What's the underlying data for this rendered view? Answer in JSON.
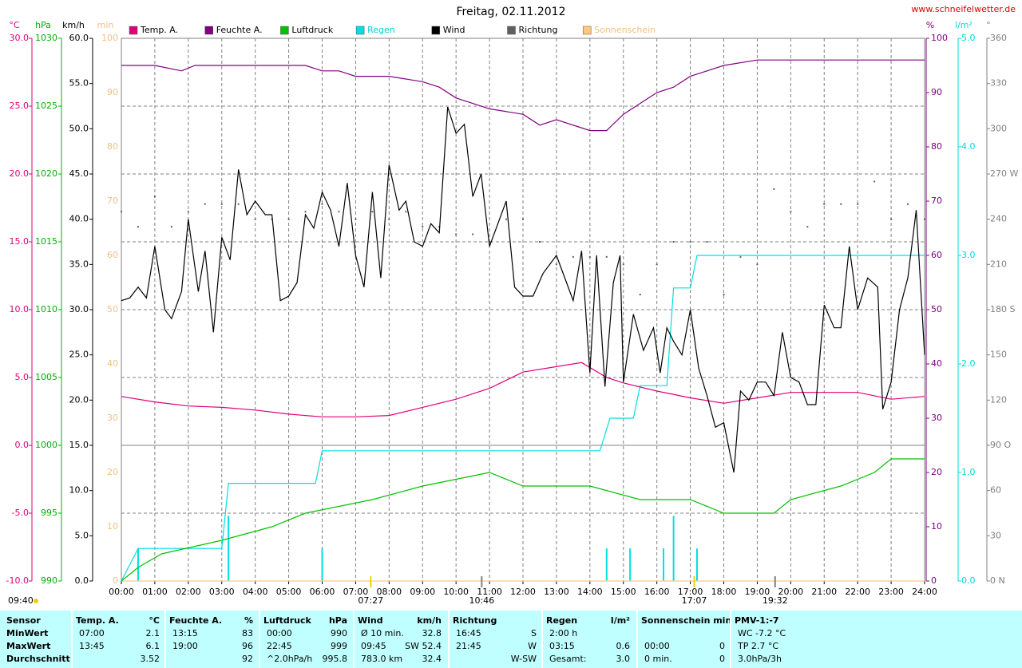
{
  "chart_data": {
    "type": "line",
    "title": "Freitag, 02.11.2012",
    "site": "www.schneifelwetter.de",
    "xlim": [
      0,
      24
    ],
    "xticks": [
      {
        "value": 0,
        "label": "00:00"
      },
      {
        "value": 1,
        "label": "01:00"
      },
      {
        "value": 2,
        "label": "02:00"
      },
      {
        "value": 3,
        "label": "03:00"
      },
      {
        "value": 4,
        "label": "04:00"
      },
      {
        "value": 5,
        "label": "05:00"
      },
      {
        "value": 6,
        "label": "06:00"
      },
      {
        "value": 7,
        "label": "07:00"
      },
      {
        "value": 8,
        "label": "08:00"
      },
      {
        "value": 9,
        "label": "09:00"
      },
      {
        "value": 10,
        "label": "10:00"
      },
      {
        "value": 11,
        "label": "11:00"
      },
      {
        "value": 12,
        "label": "12:00"
      },
      {
        "value": 13,
        "label": "13:00"
      },
      {
        "value": 14,
        "label": "14:00"
      },
      {
        "value": 15,
        "label": "15:00"
      },
      {
        "value": 16,
        "label": "16:00"
      },
      {
        "value": 17,
        "label": "17:00"
      },
      {
        "value": 18,
        "label": "18:00"
      },
      {
        "value": 19,
        "label": "19:00"
      },
      {
        "value": 20,
        "label": "20:00"
      },
      {
        "value": 21,
        "label": "21:00"
      },
      {
        "value": 22,
        "label": "22:00"
      },
      {
        "value": 23,
        "label": "23:00"
      },
      {
        "value": 24,
        "label": "24:00"
      }
    ],
    "grid": true,
    "grid_axis": "temp",
    "axes": {
      "temp": {
        "unit": "°C",
        "color": "#e0007a",
        "lim": [
          -10,
          30
        ],
        "ticks": [
          {
            "value": -10,
            "label": "-10.0"
          },
          {
            "value": -5,
            "label": "-5.0"
          },
          {
            "value": 0,
            "label": "0.0"
          },
          {
            "value": 5,
            "label": "5.0"
          },
          {
            "value": 10,
            "label": "10.0"
          },
          {
            "value": 15,
            "label": "15.0"
          },
          {
            "value": 20,
            "label": "20.0"
          },
          {
            "value": 25,
            "label": "25.0"
          },
          {
            "value": 30,
            "label": "30.0"
          }
        ]
      },
      "hpa": {
        "unit": "hPa",
        "color": "#00b000",
        "lim": [
          990,
          1030
        ],
        "ticks": [
          990,
          995,
          1000,
          1005,
          1010,
          1015,
          1020,
          1025,
          1030
        ]
      },
      "kmh": {
        "unit": "km/h",
        "color": "#000000",
        "lim": [
          0,
          60
        ],
        "ticks": [
          {
            "value": 0,
            "label": "0.0"
          },
          {
            "value": 5,
            "label": "5.0"
          },
          {
            "value": 10,
            "label": "10.0"
          },
          {
            "value": 15,
            "label": "15.0"
          },
          {
            "value": 20,
            "label": "20.0"
          },
          {
            "value": 25,
            "label": "25.0"
          },
          {
            "value": 30,
            "label": "30.0"
          },
          {
            "value": 35,
            "label": "35.0"
          },
          {
            "value": 40,
            "label": "40.0"
          },
          {
            "value": 45,
            "label": "45.0"
          },
          {
            "value": 50,
            "label": "50.0"
          },
          {
            "value": 55,
            "label": "55.0"
          },
          {
            "value": 60,
            "label": "60.0"
          }
        ]
      },
      "min": {
        "unit": "min",
        "color": "#f0c080",
        "lim": [
          0,
          100
        ],
        "ticks": [
          0,
          10,
          20,
          30,
          40,
          50,
          60,
          70,
          80,
          90,
          100
        ]
      },
      "pct": {
        "unit": "%",
        "color": "#800080",
        "lim": [
          0,
          100
        ],
        "ticks": [
          0,
          10,
          20,
          30,
          40,
          50,
          60,
          70,
          80,
          90,
          100
        ]
      },
      "rain": {
        "unit": "l/m²",
        "color": "#00d8d8",
        "lim": [
          0,
          5
        ],
        "ticks": [
          {
            "value": 0,
            "label": "0.0"
          },
          {
            "value": 1,
            "label": "1.0"
          },
          {
            "value": 2,
            "label": "2.0"
          },
          {
            "value": 3,
            "label": "3.0"
          },
          {
            "value": 4,
            "label": "4.0"
          },
          {
            "value": 5,
            "label": "5.0"
          }
        ]
      },
      "dir": {
        "unit": "°",
        "color": "#808080",
        "lim": [
          0,
          360
        ],
        "ticks": [
          {
            "value": 0,
            "label": "0 N"
          },
          {
            "value": 30,
            "label": "30"
          },
          {
            "value": 60,
            "label": "60"
          },
          {
            "value": 90,
            "label": "90 O"
          },
          {
            "value": 120,
            "label": "120"
          },
          {
            "value": 150,
            "label": "150"
          },
          {
            "value": 180,
            "label": "180 S"
          },
          {
            "value": 210,
            "label": "210"
          },
          {
            "value": 240,
            "label": "240"
          },
          {
            "value": 270,
            "label": "270 W"
          },
          {
            "value": 300,
            "label": "300"
          },
          {
            "value": 330,
            "label": "330"
          },
          {
            "value": 360,
            "label": "360"
          }
        ]
      }
    },
    "series": [
      {
        "name": "Temp. A.",
        "color": "#e0007a",
        "axis": "temp",
        "style": "line",
        "x": [
          0,
          1,
          2,
          3,
          4,
          5,
          6,
          7,
          8,
          9,
          10,
          11,
          12,
          13,
          13.75,
          14.5,
          15,
          16,
          17,
          18,
          19,
          20,
          21,
          22,
          23,
          24
        ],
        "values": [
          3.6,
          3.2,
          2.9,
          2.8,
          2.6,
          2.3,
          2.1,
          2.1,
          2.2,
          2.8,
          3.4,
          4.2,
          5.4,
          5.8,
          6.1,
          5.0,
          4.6,
          4.0,
          3.5,
          3.1,
          3.5,
          3.9,
          3.9,
          3.9,
          3.4,
          3.6
        ]
      },
      {
        "name": "Feuchte A.",
        "color": "#800080",
        "axis": "pct",
        "style": "line",
        "x": [
          0,
          1,
          1.8,
          2.2,
          3,
          5.5,
          6,
          6.5,
          7,
          8,
          9,
          9.5,
          10,
          10.5,
          11,
          12,
          12.5,
          13,
          14,
          14.5,
          15,
          15.5,
          16,
          16.5,
          17,
          18,
          19,
          24
        ],
        "values": [
          95,
          95,
          94,
          95,
          95,
          95,
          94,
          94,
          93,
          93,
          92,
          91,
          89,
          88,
          87,
          86,
          84,
          85,
          83,
          83,
          86,
          88,
          90,
          91,
          93,
          95,
          96,
          96
        ]
      },
      {
        "name": "Luftdruck",
        "color": "#00c000",
        "axis": "hpa",
        "style": "line",
        "x": [
          0,
          0.5,
          1.2,
          3,
          4.5,
          5.5,
          7.5,
          9,
          11,
          12,
          14,
          15.5,
          17,
          18,
          19.5,
          20,
          21.5,
          22.5,
          23,
          24
        ],
        "values": [
          990,
          991,
          992,
          993,
          994,
          995,
          996,
          997,
          998,
          997,
          997,
          996,
          996,
          995,
          995,
          996,
          997,
          998,
          999,
          999
        ]
      },
      {
        "name": "Regen",
        "color": "#00e0e0",
        "axis": "rain",
        "style": "line",
        "x": [
          0,
          0.5,
          3,
          3.2,
          5.8,
          6,
          14.3,
          14.6,
          15.3,
          15.5,
          16.3,
          16.5,
          17,
          17.2,
          24
        ],
        "values": [
          0,
          0.3,
          0.3,
          0.9,
          0.9,
          1.2,
          1.2,
          1.5,
          1.5,
          1.8,
          1.8,
          2.7,
          2.7,
          3.0,
          3.0
        ]
      },
      {
        "name": "Wind",
        "color": "#000000",
        "axis": "kmh",
        "style": "line",
        "x": [
          0,
          0.25,
          0.5,
          0.75,
          1,
          1.3,
          1.5,
          1.8,
          2,
          2.3,
          2.5,
          2.75,
          3,
          3.25,
          3.5,
          3.75,
          4,
          4.3,
          4.5,
          4.75,
          5,
          5.25,
          5.5,
          5.75,
          6,
          6.25,
          6.5,
          6.75,
          7,
          7.25,
          7.5,
          7.75,
          8,
          8.3,
          8.5,
          8.75,
          9,
          9.25,
          9.5,
          9.75,
          10,
          10.25,
          10.5,
          10.75,
          11,
          11.5,
          11.75,
          12,
          12.3,
          12.6,
          13,
          13.3,
          13.5,
          13.75,
          14,
          14.2,
          14.45,
          14.7,
          14.9,
          15,
          15.3,
          15.6,
          15.9,
          16.1,
          16.3,
          16.5,
          16.75,
          17,
          17.25,
          17.5,
          17.75,
          18,
          18.3,
          18.5,
          18.75,
          19,
          19.25,
          19.5,
          19.75,
          20,
          20.25,
          20.5,
          20.75,
          21,
          21.3,
          21.5,
          21.75,
          22,
          22.3,
          22.6,
          22.75,
          23,
          23.25,
          23.5,
          23.75,
          24
        ],
        "values": [
          31,
          31.3,
          32.5,
          31.3,
          37,
          30,
          29,
          32,
          40,
          32,
          36.5,
          27.5,
          38,
          35.5,
          45.5,
          40.5,
          42,
          40.5,
          40.5,
          31,
          31.5,
          33,
          40.5,
          39,
          43,
          41,
          37,
          44,
          36,
          32.5,
          43,
          33.5,
          46,
          41,
          42,
          37.5,
          37,
          39.5,
          38.5,
          52.4,
          49.5,
          50.5,
          42.5,
          45,
          37,
          42,
          32.5,
          31.5,
          31.5,
          34,
          36,
          33,
          31,
          36.5,
          23,
          36,
          21.5,
          33,
          36,
          22,
          29.5,
          25.5,
          28,
          23,
          28,
          26.5,
          25,
          30,
          23.5,
          20.5,
          17,
          17.5,
          12,
          21,
          20,
          22,
          22,
          20.5,
          27.5,
          22.5,
          22,
          19.5,
          19.5,
          30.5,
          28,
          28,
          37,
          30,
          33.5,
          32.5,
          19,
          22,
          30,
          33.5,
          41,
          25
        ]
      },
      {
        "name": "Richtung",
        "color": "#606060",
        "axis": "dir",
        "style": "dots",
        "x": [
          0,
          0.5,
          1,
          1.5,
          2,
          2.5,
          3,
          3.5,
          4,
          4.5,
          5,
          5.5,
          6,
          6.5,
          7,
          7.5,
          8,
          8.5,
          9,
          9.5,
          10,
          10.5,
          11,
          11.5,
          12,
          12.5,
          13,
          13.5,
          14,
          14.5,
          15,
          15.5,
          16,
          16.5,
          17,
          17.5,
          18,
          18.5,
          19,
          19.5,
          20,
          20.5,
          21,
          21.5,
          22,
          22.5,
          23,
          23.5,
          24
        ],
        "values": [
          245,
          235,
          255,
          235,
          245,
          250,
          250,
          250,
          240,
          240,
          240,
          245,
          250,
          245,
          240,
          245,
          240,
          245,
          235,
          235,
          230,
          230,
          225,
          240,
          240,
          225,
          210,
          215,
          215,
          215,
          210,
          190,
          210,
          225,
          225,
          225,
          190,
          215,
          210,
          260,
          245,
          235,
          250,
          250,
          250,
          265,
          240,
          250,
          240
        ]
      },
      {
        "name": "Sonnenschein",
        "color": "#ffc880",
        "axis": "min",
        "style": "line",
        "x": [
          0,
          24
        ],
        "values": [
          0,
          0
        ]
      }
    ],
    "rain_10min": {
      "color": "#00e0e0",
      "axis": "rain",
      "x": [
        0.5,
        3.2,
        6,
        14.5,
        15.2,
        16.2,
        16.5,
        17.2
      ],
      "values": [
        0.3,
        0.6,
        0.3,
        0.3,
        0.3,
        0.3,
        0.6,
        0.3
      ]
    },
    "day_length": "09:40",
    "annotations": [
      {
        "value": 7.45,
        "label": "07:27",
        "color": "#f0d000"
      },
      {
        "value": 10.767,
        "label": "10:46",
        "color": "#808080"
      },
      {
        "value": 17.117,
        "label": "17:07",
        "color": "#f0d000"
      },
      {
        "value": 19.533,
        "label": "19:32",
        "color": "#808080"
      }
    ]
  },
  "table": {
    "header": "Sensor",
    "row_labels": [
      "MinWert",
      "MaxWert",
      "Durchschnitt"
    ],
    "columns": [
      {
        "title": "Temp. A.",
        "unit": "°C",
        "cells": [
          {
            "left": "07:00",
            "right": "2.1"
          },
          {
            "left": "13:45",
            "right": "6.1"
          },
          {
            "right": "3.52"
          }
        ]
      },
      {
        "title": "Feuchte A.",
        "unit": "%",
        "cells": [
          {
            "left": "13:15",
            "right": "83"
          },
          {
            "left": "19:00",
            "right": "96"
          },
          {
            "right": "92"
          }
        ]
      },
      {
        "title": "Luftdruck",
        "unit": "hPa",
        "cells": [
          {
            "left": "00:00",
            "right": "990"
          },
          {
            "left": "22:45",
            "right": "999"
          },
          {
            "left": "^2.0hPa/h",
            "right": "995.8"
          }
        ]
      },
      {
        "title": "Wind",
        "unit": "km/h",
        "cells": [
          {
            "left": "Ø 10 min.",
            "right": "32.8"
          },
          {
            "left": "09:45",
            "right": "SW 52.4"
          },
          {
            "left": "783.0 km",
            "right": "32.4"
          }
        ]
      },
      {
        "title": "Richtung",
        "cells": [
          {
            "left": "16:45",
            "right": "S"
          },
          {
            "left": "21:45",
            "right": "W"
          },
          {
            "right": "W-SW"
          }
        ]
      },
      {
        "title": "Regen",
        "unit": "l/m²",
        "cells": [
          {
            "left": "2:00 h"
          },
          {
            "left": "03:15",
            "right": "0.6"
          },
          {
            "left": "Gesamt:",
            "right": "3.0"
          }
        ]
      },
      {
        "title": "Sonnenschein min",
        "cells": [
          {},
          {
            "left": "00:00",
            "right": "0"
          },
          {
            "left": "0 min.",
            "right": "0"
          }
        ]
      },
      {
        "title": "PMV-1:-7",
        "cells": [
          {
            "left": "WC -7.2 °C"
          },
          {
            "left": "TP 2.7 °C"
          },
          {
            "left": "3.0hPa/3h"
          }
        ]
      }
    ]
  }
}
